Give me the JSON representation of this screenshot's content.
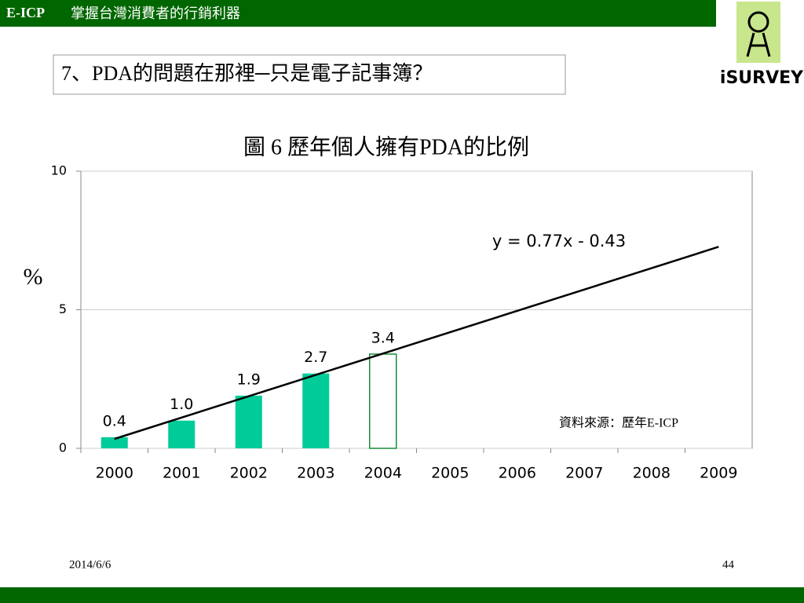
{
  "header": {
    "brand": "E-ICP",
    "title": "掌握台灣消費者的行銷利器",
    "question": "7、PDA的問題在那裡─只是電子記事簿？",
    "logo": "iSURVEY"
  },
  "footer": {
    "date": "2014/6/6",
    "page": "44"
  },
  "chart_data": {
    "type": "bar",
    "title": "圖 6  歷年個人擁有PDA的比例",
    "y_label": "%",
    "categories": [
      "2000",
      "2001",
      "2002",
      "2003",
      "2004",
      "2005",
      "2006",
      "2007",
      "2008",
      "2009"
    ],
    "values": [
      0.4,
      1.0,
      1.9,
      2.7,
      3.4,
      null,
      null,
      null,
      null,
      null
    ],
    "value_labels": [
      "0.4",
      "1.0",
      "1.9",
      "2.7",
      "3.4",
      null,
      null,
      null,
      null,
      null
    ],
    "color": "#00cc99",
    "hollow_categories": [
      "2004"
    ],
    "hollow_color": "#1a8a3a",
    "ylim": [
      0,
      10
    ],
    "yticks": [
      0,
      5,
      10
    ],
    "grid": true,
    "trendline": {
      "slope": 0.77,
      "intercept": -0.43,
      "label": "y = 0.77x - 0.43",
      "color": "#000000"
    },
    "source": "資料來源：歷年E-ICP"
  }
}
